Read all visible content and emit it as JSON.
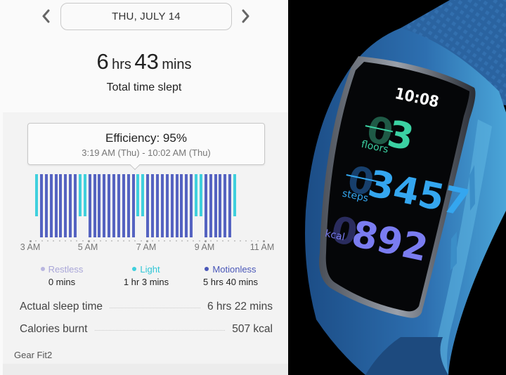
{
  "header": {
    "prev_label": "‹",
    "next_label": "›",
    "date": "THU, JULY 14"
  },
  "summary": {
    "hours": "6",
    "hours_unit": "hrs",
    "minutes": "43",
    "minutes_unit": "mins",
    "label": "Total time slept"
  },
  "tooltip": {
    "title": "Efficiency: 95%",
    "range": "3:19 AM (Thu) - 10:02 AM (Thu)"
  },
  "chart_data": {
    "type": "bar",
    "title": "Sleep stages",
    "xlabel": "",
    "ylabel": "",
    "x_ticks": [
      "3 AM",
      "5 AM",
      "7 AM",
      "9 AM",
      "11 AM"
    ],
    "x_range": [
      "3 AM",
      "11 AM"
    ],
    "grid": false,
    "legend_position": "bottom",
    "colors": {
      "restless": "#b3b0de",
      "light": "#3fd0dd",
      "motionless": "#5563c1"
    },
    "series": [
      {
        "name": "stage",
        "values": [
          "light",
          "motionless",
          "motionless",
          "motionless",
          "motionless",
          "motionless",
          "motionless",
          "motionless",
          "motionless",
          "light",
          "light",
          "motionless",
          "motionless",
          "motionless",
          "motionless",
          "motionless",
          "motionless",
          "motionless",
          "motionless",
          "motionless",
          "motionless",
          "light",
          "light",
          "motionless",
          "motionless",
          "motionless",
          "motionless",
          "motionless",
          "motionless",
          "motionless",
          "motionless",
          "motionless",
          "motionless",
          "light",
          "light",
          "motionless",
          "motionless",
          "motionless",
          "motionless",
          "motionless",
          "motionless",
          "light"
        ]
      }
    ],
    "start": "3:19 AM",
    "end": "10:02 AM"
  },
  "legend": [
    {
      "name": "Restless",
      "value": "0 mins",
      "color": "#a9a6d8"
    },
    {
      "name": "Light",
      "value": "1 hr 3 mins",
      "color": "#2fc6d6"
    },
    {
      "name": "Motionless",
      "value": "5 hrs 40 mins",
      "color": "#4a57b8"
    }
  ],
  "stats": [
    {
      "label": "Actual sleep time",
      "value": "6 hrs 22 mins"
    },
    {
      "label": "Calories burnt",
      "value": "507 kcal"
    }
  ],
  "device": "Gear Fit2",
  "watch": {
    "time": "10:08",
    "floors_value": "03",
    "floors_label": "floors",
    "steps_value": "03457",
    "steps_label": "steps",
    "kcal_value": "0892",
    "kcal_label": "kcal"
  }
}
